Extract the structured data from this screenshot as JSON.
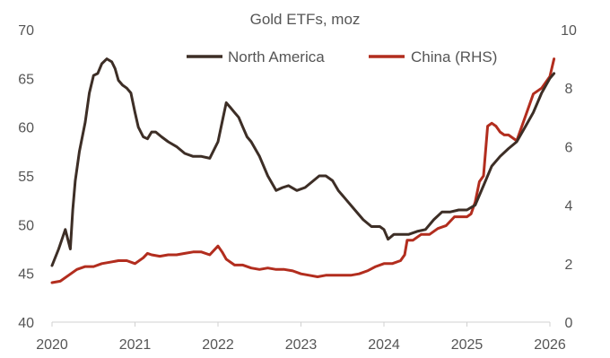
{
  "chart_data": {
    "type": "line",
    "title": "Gold ETFs, moz",
    "xlabel": "",
    "ylabel": "",
    "xlim": [
      2020.0,
      2026.0
    ],
    "ylim_left": [
      40,
      70
    ],
    "ylim_right": [
      0,
      10
    ],
    "x_ticks": [
      "2020",
      "2021",
      "2022",
      "2023",
      "2024",
      "2025",
      "2026"
    ],
    "y_ticks_left": [
      "40",
      "45",
      "50",
      "55",
      "60",
      "65",
      "70"
    ],
    "y_ticks_right": [
      "0",
      "2",
      "4",
      "6",
      "8",
      "10"
    ],
    "legend_position": "top",
    "series": [
      {
        "name": "North America",
        "axis": "left",
        "color": "#3d2e26",
        "x": [
          2020.0,
          2020.08,
          2020.16,
          2020.22,
          2020.25,
          2020.28,
          2020.33,
          2020.4,
          2020.45,
          2020.5,
          2020.55,
          2020.6,
          2020.66,
          2020.72,
          2020.76,
          2020.8,
          2020.85,
          2020.9,
          2020.95,
          2021.0,
          2021.04,
          2021.1,
          2021.15,
          2021.2,
          2021.25,
          2021.32,
          2021.4,
          2021.5,
          2021.6,
          2021.7,
          2021.8,
          2021.9,
          2022.0,
          2022.05,
          2022.1,
          2022.15,
          2022.2,
          2022.25,
          2022.3,
          2022.35,
          2022.4,
          2022.5,
          2022.6,
          2022.7,
          2022.78,
          2022.85,
          2022.95,
          2023.05,
          2023.15,
          2023.22,
          2023.3,
          2023.38,
          2023.45,
          2023.55,
          2023.65,
          2023.75,
          2023.85,
          2023.95,
          2024.0,
          2024.05,
          2024.12,
          2024.2,
          2024.3,
          2024.4,
          2024.5,
          2024.6,
          2024.7,
          2024.8,
          2024.9,
          2025.0,
          2025.1,
          2025.2,
          2025.3,
          2025.4,
          2025.5,
          2025.6,
          2025.7,
          2025.8,
          2025.9,
          2026.0,
          2026.05
        ],
        "values": [
          45.8,
          47.5,
          49.5,
          47.5,
          51.5,
          54.5,
          57.5,
          60.5,
          63.5,
          65.3,
          65.5,
          66.5,
          67.0,
          66.7,
          66.0,
          64.8,
          64.3,
          64.0,
          63.5,
          61.5,
          60.0,
          59.0,
          58.8,
          59.5,
          59.5,
          59.0,
          58.5,
          58.0,
          57.3,
          57.0,
          57.0,
          56.8,
          58.5,
          60.5,
          62.5,
          62.0,
          61.5,
          61.0,
          60.0,
          59.0,
          58.5,
          57.0,
          55.0,
          53.5,
          53.8,
          54.0,
          53.5,
          53.8,
          54.5,
          55.0,
          55.0,
          54.5,
          53.5,
          52.5,
          51.5,
          50.5,
          49.8,
          49.8,
          49.5,
          48.5,
          49.0,
          49.0,
          49.0,
          49.3,
          49.5,
          50.5,
          51.3,
          51.3,
          51.5,
          51.5,
          52.0,
          54.0,
          56.0,
          57.0,
          57.8,
          58.5,
          60.0,
          61.5,
          63.5,
          65.0,
          65.5
        ]
      },
      {
        "name": "China (RHS)",
        "axis": "right",
        "color": "#b22d1e",
        "x": [
          2020.0,
          2020.1,
          2020.2,
          2020.3,
          2020.4,
          2020.5,
          2020.6,
          2020.7,
          2020.8,
          2020.9,
          2021.0,
          2021.1,
          2021.15,
          2021.2,
          2021.3,
          2021.4,
          2021.5,
          2021.6,
          2021.7,
          2021.8,
          2021.9,
          2022.0,
          2022.05,
          2022.1,
          2022.2,
          2022.3,
          2022.4,
          2022.5,
          2022.6,
          2022.7,
          2022.8,
          2022.9,
          2023.0,
          2023.1,
          2023.2,
          2023.3,
          2023.4,
          2023.5,
          2023.6,
          2023.7,
          2023.8,
          2023.9,
          2024.0,
          2024.1,
          2024.2,
          2024.25,
          2024.28,
          2024.35,
          2024.45,
          2024.55,
          2024.65,
          2024.75,
          2024.85,
          2024.95,
          2025.0,
          2025.05,
          2025.1,
          2025.15,
          2025.2,
          2025.25,
          2025.3,
          2025.35,
          2025.4,
          2025.45,
          2025.5,
          2025.6,
          2025.7,
          2025.8,
          2025.9,
          2026.0,
          2026.05
        ],
        "values": [
          1.35,
          1.4,
          1.6,
          1.8,
          1.9,
          1.9,
          2.0,
          2.05,
          2.1,
          2.1,
          2.0,
          2.2,
          2.35,
          2.3,
          2.25,
          2.3,
          2.3,
          2.35,
          2.4,
          2.4,
          2.3,
          2.6,
          2.4,
          2.15,
          1.95,
          1.95,
          1.85,
          1.8,
          1.85,
          1.8,
          1.8,
          1.75,
          1.65,
          1.6,
          1.55,
          1.6,
          1.6,
          1.6,
          1.6,
          1.65,
          1.75,
          1.9,
          2.0,
          2.0,
          2.1,
          2.3,
          2.8,
          2.8,
          3.0,
          3.0,
          3.2,
          3.3,
          3.6,
          3.6,
          3.6,
          3.7,
          4.1,
          4.8,
          5.0,
          6.7,
          6.8,
          6.7,
          6.5,
          6.4,
          6.4,
          6.2,
          7.0,
          7.8,
          8.0,
          8.4,
          9.0
        ]
      }
    ]
  }
}
